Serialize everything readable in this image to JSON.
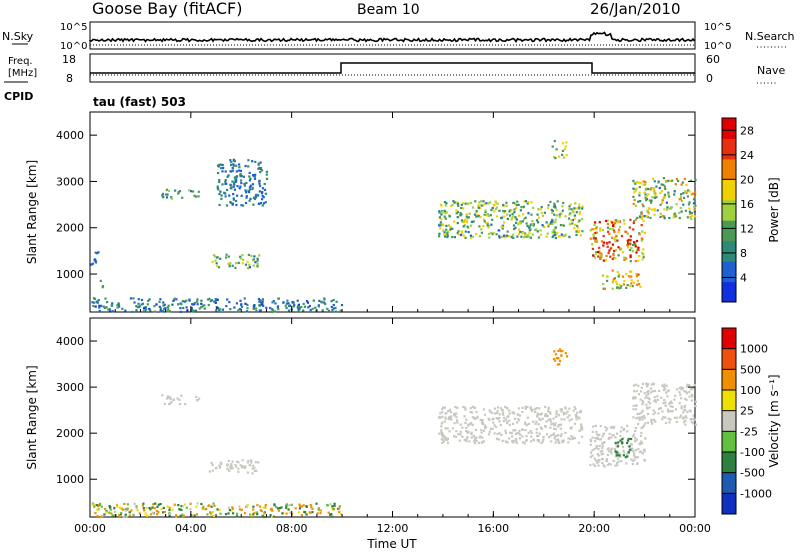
{
  "header": {
    "station": "Goose Bay (fitACF)",
    "beam": "Beam 10",
    "date": "26/Jan/2010"
  },
  "top_panels": {
    "nsky_label": "N.Sky",
    "nsearch_label": "N.Search",
    "freq_label_1": "Freq.",
    "freq_label_2": "[MHz]",
    "nave_label": "Nave",
    "cpid_label": "CPID",
    "cpid_value": "tau (fast) 503",
    "noise_left_ticks": [
      "10^5",
      "10^0"
    ],
    "noise_right_ticks": [
      "10^5",
      "10^0"
    ],
    "freq_ticks": [
      "18",
      "8"
    ],
    "nave_ticks": [
      "60",
      "0"
    ]
  },
  "colors": {
    "power": [
      "#1030e0",
      "#1f5fcf",
      "#2d8a78",
      "#4a9a55",
      "#9fd040",
      "#f0d000",
      "#f08000",
      "#e83010",
      "#e00000"
    ],
    "velocity": [
      "#1030c0",
      "#1d5ab0",
      "#2d8040",
      "#60c040",
      "#c8c8c0",
      "#f0e000",
      "#f09000",
      "#f05010",
      "#e00000"
    ]
  },
  "chart_data": [
    {
      "type": "heatmap",
      "name": "power",
      "ylabel": "Slant Range [km]",
      "xlabel": "",
      "x_ticks": [
        "00:00",
        "04:00",
        "08:00",
        "12:00",
        "16:00",
        "20:00",
        "00:00"
      ],
      "y_ticks": [
        1000,
        2000,
        3000,
        4000
      ],
      "xlim": [
        0,
        24
      ],
      "ylim": [
        180,
        4500
      ],
      "colorbar_label": "Power [dB]",
      "colorbar_ticks": [
        "4",
        "8",
        "12",
        "16",
        "20",
        "24",
        "28"
      ],
      "colorbar_range": [
        0,
        30
      ],
      "regions": [
        {
          "x": [
            0.0,
            10.0
          ],
          "y": [
            200,
            500
          ],
          "values": [
            3,
            12
          ]
        },
        {
          "x": [
            0.0,
            0.5
          ],
          "y": [
            700,
            900
          ],
          "values": [
            8,
            14
          ]
        },
        {
          "x": [
            0.0,
            0.3
          ],
          "y": [
            1200,
            1600
          ],
          "values": [
            4,
            8
          ]
        },
        {
          "x": [
            2.8,
            4.3
          ],
          "y": [
            2650,
            2850
          ],
          "values": [
            6,
            14
          ]
        },
        {
          "x": [
            5.0,
            7.0
          ],
          "y": [
            2500,
            3500
          ],
          "values": [
            4,
            10
          ]
        },
        {
          "x": [
            4.7,
            6.7
          ],
          "y": [
            1150,
            1450
          ],
          "values": [
            6,
            18
          ]
        },
        {
          "x": [
            13.8,
            19.5
          ],
          "y": [
            1800,
            2600
          ],
          "values": [
            6,
            20
          ]
        },
        {
          "x": [
            19.8,
            22.0
          ],
          "y": [
            1300,
            2200
          ],
          "values": [
            12,
            30
          ]
        },
        {
          "x": [
            20.3,
            21.8
          ],
          "y": [
            700,
            1100
          ],
          "values": [
            10,
            24
          ]
        },
        {
          "x": [
            21.5,
            24.0
          ],
          "y": [
            2200,
            3100
          ],
          "values": [
            6,
            22
          ]
        },
        {
          "x": [
            18.3,
            18.9
          ],
          "y": [
            3500,
            3900
          ],
          "values": [
            10,
            20
          ]
        }
      ]
    },
    {
      "type": "heatmap",
      "name": "velocity",
      "ylabel": "Slant Range [km]",
      "xlabel": "Time UT",
      "x_ticks": [
        "00:00",
        "04:00",
        "08:00",
        "12:00",
        "16:00",
        "20:00",
        "00:00"
      ],
      "y_ticks": [
        1000,
        2000,
        3000,
        4000
      ],
      "xlim": [
        0,
        24
      ],
      "ylim": [
        180,
        4500
      ],
      "colorbar_label": "Velocity [m s⁻¹]",
      "colorbar_ticks": [
        "1000",
        "500",
        "100",
        "25",
        "-25",
        "-100",
        "-500",
        "-1000"
      ],
      "regions": [
        {
          "x": [
            0.0,
            10.0
          ],
          "y": [
            200,
            500
          ],
          "values": [
            -300,
            300
          ]
        },
        {
          "x": [
            2.8,
            4.3
          ],
          "y": [
            2650,
            2850
          ],
          "values": [
            -20,
            20
          ]
        },
        {
          "x": [
            4.7,
            6.7
          ],
          "y": [
            1150,
            1450
          ],
          "values": [
            -20,
            20
          ]
        },
        {
          "x": [
            13.8,
            19.5
          ],
          "y": [
            1800,
            2600
          ],
          "values": [
            -20,
            20
          ]
        },
        {
          "x": [
            19.8,
            22.0
          ],
          "y": [
            1300,
            2200
          ],
          "values": [
            -20,
            20
          ]
        },
        {
          "x": [
            20.8,
            21.5
          ],
          "y": [
            1500,
            1900
          ],
          "values": [
            100,
            500
          ]
        },
        {
          "x": [
            18.3,
            18.9
          ],
          "y": [
            3500,
            3900
          ],
          "values": [
            -500,
            -100
          ]
        },
        {
          "x": [
            21.5,
            24.0
          ],
          "y": [
            2200,
            3100
          ],
          "values": [
            -20,
            20
          ]
        }
      ]
    }
  ],
  "xlabel_bottom": "Time UT"
}
